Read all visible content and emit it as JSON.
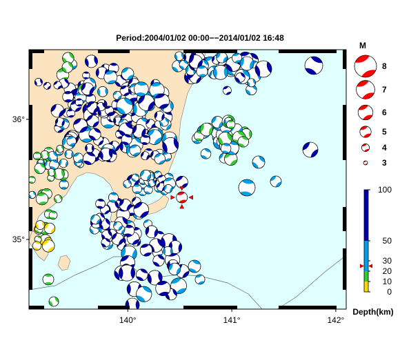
{
  "title": "Period:2004/01/02 00:00−−2014/01/02 16:48",
  "map": {
    "lon_labels": [
      "140°",
      "141°",
      "142°"
    ],
    "lat_labels": [
      "36°",
      "35°"
    ],
    "lon_range": [
      139.05,
      142.1
    ],
    "lat_range": [
      34.42,
      36.58
    ],
    "colors": {
      "sea": "#e0ffff",
      "land": "#fde4c0",
      "frame": "#000000"
    },
    "epicenter_marker": {
      "lon": 140.52,
      "lat": 35.35,
      "color": "#ff0000"
    }
  },
  "magnitude_legend": {
    "title": "M",
    "items": [
      {
        "label": "8",
        "mag": 8
      },
      {
        "label": "7",
        "mag": 7
      },
      {
        "label": "6",
        "mag": 6
      },
      {
        "label": "5",
        "mag": 5
      },
      {
        "label": "4",
        "mag": 4
      },
      {
        "label": "3",
        "mag": 3
      }
    ],
    "color": "#ff0000"
  },
  "depth_scale": {
    "title": "Depth(km)",
    "ticks": [
      "100",
      "50",
      "30",
      "20",
      "10",
      "0"
    ],
    "bands": [
      {
        "from": 0,
        "to": 10,
        "color": "#ffd700"
      },
      {
        "from": 10,
        "to": 20,
        "color": "#32cd32"
      },
      {
        "from": 20,
        "to": 50,
        "color": "#00a0e8"
      },
      {
        "from": 50,
        "to": 100,
        "color": "#0000aa"
      }
    ],
    "marker_depth": 25
  }
}
